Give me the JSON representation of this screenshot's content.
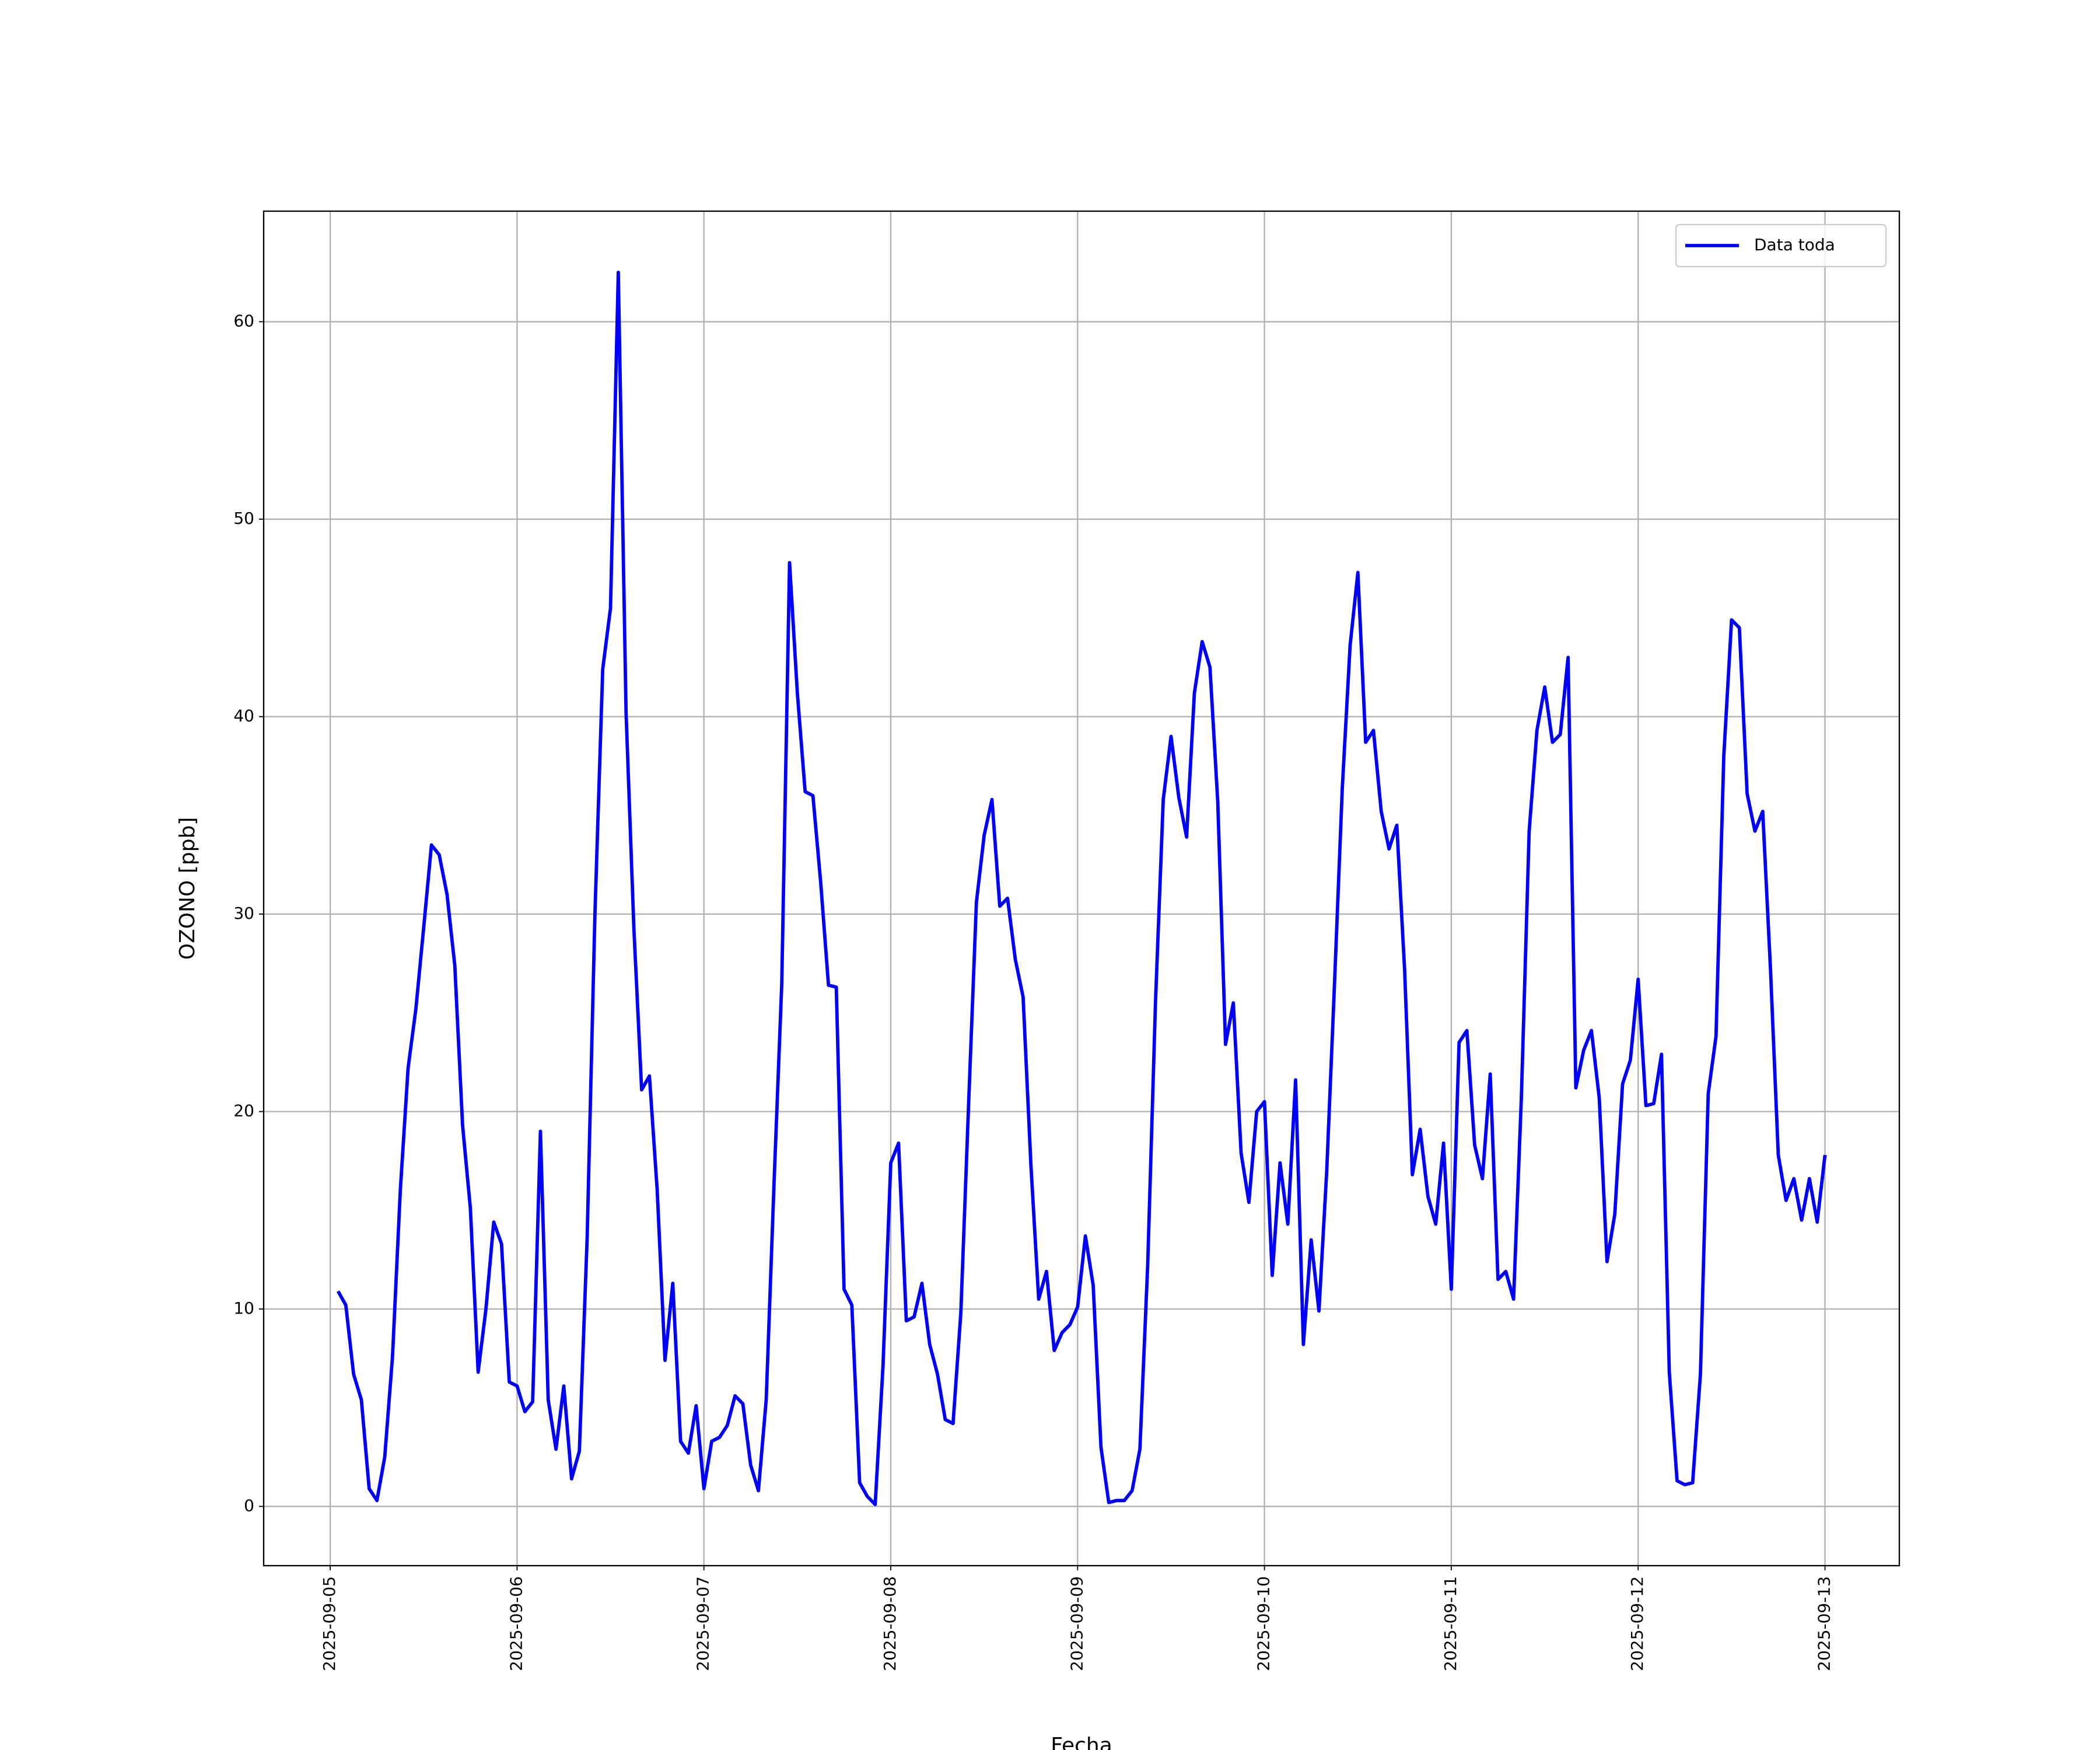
{
  "chart_data": {
    "type": "line",
    "x_label": "Fecha",
    "y_label": "OZONO [ppb]",
    "x": [
      "2025-09-05 01:00",
      "2025-09-05 02:00",
      "2025-09-05 03:00",
      "2025-09-05 04:00",
      "2025-09-05 05:00",
      "2025-09-05 06:00",
      "2025-09-05 07:00",
      "2025-09-05 08:00",
      "2025-09-05 09:00",
      "2025-09-05 10:00",
      "2025-09-05 11:00",
      "2025-09-05 12:00",
      "2025-09-05 13:00",
      "2025-09-05 14:00",
      "2025-09-05 15:00",
      "2025-09-05 16:00",
      "2025-09-05 17:00",
      "2025-09-05 18:00",
      "2025-09-05 19:00",
      "2025-09-05 20:00",
      "2025-09-05 21:00",
      "2025-09-05 22:00",
      "2025-09-05 23:00",
      "2025-09-06 00:00",
      "2025-09-06 01:00",
      "2025-09-06 02:00",
      "2025-09-06 03:00",
      "2025-09-06 04:00",
      "2025-09-06 05:00",
      "2025-09-06 06:00",
      "2025-09-06 07:00",
      "2025-09-06 08:00",
      "2025-09-06 09:00",
      "2025-09-06 10:00",
      "2025-09-06 11:00",
      "2025-09-06 12:00",
      "2025-09-06 13:00",
      "2025-09-06 14:00",
      "2025-09-06 15:00",
      "2025-09-06 16:00",
      "2025-09-06 17:00",
      "2025-09-06 18:00",
      "2025-09-06 19:00",
      "2025-09-06 20:00",
      "2025-09-06 21:00",
      "2025-09-06 22:00",
      "2025-09-06 23:00",
      "2025-09-07 00:00",
      "2025-09-07 01:00",
      "2025-09-07 02:00",
      "2025-09-07 03:00",
      "2025-09-07 04:00",
      "2025-09-07 05:00",
      "2025-09-07 06:00",
      "2025-09-07 07:00",
      "2025-09-07 08:00",
      "2025-09-07 09:00",
      "2025-09-07 10:00",
      "2025-09-07 11:00",
      "2025-09-07 12:00",
      "2025-09-07 13:00",
      "2025-09-07 14:00",
      "2025-09-07 15:00",
      "2025-09-07 16:00",
      "2025-09-07 17:00",
      "2025-09-07 18:00",
      "2025-09-07 19:00",
      "2025-09-07 20:00",
      "2025-09-07 21:00",
      "2025-09-07 22:00",
      "2025-09-07 23:00",
      "2025-09-08 00:00",
      "2025-09-08 01:00",
      "2025-09-08 02:00",
      "2025-09-08 03:00",
      "2025-09-08 04:00",
      "2025-09-08 05:00",
      "2025-09-08 06:00",
      "2025-09-08 07:00",
      "2025-09-08 08:00",
      "2025-09-08 09:00",
      "2025-09-08 10:00",
      "2025-09-08 11:00",
      "2025-09-08 12:00",
      "2025-09-08 13:00",
      "2025-09-08 14:00",
      "2025-09-08 15:00",
      "2025-09-08 16:00",
      "2025-09-08 17:00",
      "2025-09-08 18:00",
      "2025-09-08 19:00",
      "2025-09-08 20:00",
      "2025-09-08 21:00",
      "2025-09-08 22:00",
      "2025-09-08 23:00",
      "2025-09-09 00:00",
      "2025-09-09 01:00",
      "2025-09-09 02:00",
      "2025-09-09 03:00",
      "2025-09-09 04:00",
      "2025-09-09 05:00",
      "2025-09-09 06:00",
      "2025-09-09 07:00",
      "2025-09-09 08:00",
      "2025-09-09 09:00",
      "2025-09-09 10:00",
      "2025-09-09 11:00",
      "2025-09-09 12:00",
      "2025-09-09 13:00",
      "2025-09-09 14:00",
      "2025-09-09 15:00",
      "2025-09-09 16:00",
      "2025-09-09 17:00",
      "2025-09-09 18:00",
      "2025-09-09 19:00",
      "2025-09-09 20:00",
      "2025-09-09 21:00",
      "2025-09-09 22:00",
      "2025-09-09 23:00",
      "2025-09-10 00:00",
      "2025-09-10 01:00",
      "2025-09-10 02:00",
      "2025-09-10 03:00",
      "2025-09-10 04:00",
      "2025-09-10 05:00",
      "2025-09-10 06:00",
      "2025-09-10 07:00",
      "2025-09-10 08:00",
      "2025-09-10 09:00",
      "2025-09-10 10:00",
      "2025-09-10 11:00",
      "2025-09-10 12:00",
      "2025-09-10 13:00",
      "2025-09-10 14:00",
      "2025-09-10 15:00",
      "2025-09-10 16:00",
      "2025-09-10 17:00",
      "2025-09-10 18:00",
      "2025-09-10 19:00",
      "2025-09-10 20:00",
      "2025-09-10 21:00",
      "2025-09-10 22:00",
      "2025-09-10 23:00",
      "2025-09-11 00:00",
      "2025-09-11 01:00",
      "2025-09-11 02:00",
      "2025-09-11 03:00",
      "2025-09-11 04:00",
      "2025-09-11 05:00",
      "2025-09-11 06:00",
      "2025-09-11 07:00",
      "2025-09-11 08:00",
      "2025-09-11 09:00",
      "2025-09-11 10:00",
      "2025-09-11 11:00",
      "2025-09-11 12:00",
      "2025-09-11 13:00",
      "2025-09-11 14:00",
      "2025-09-11 15:00",
      "2025-09-11 16:00",
      "2025-09-11 17:00",
      "2025-09-11 18:00",
      "2025-09-11 19:00",
      "2025-09-11 20:00",
      "2025-09-11 21:00",
      "2025-09-11 22:00",
      "2025-09-11 23:00",
      "2025-09-12 00:00",
      "2025-09-12 01:00",
      "2025-09-12 02:00",
      "2025-09-12 03:00",
      "2025-09-12 04:00",
      "2025-09-12 05:00",
      "2025-09-12 06:00",
      "2025-09-12 07:00",
      "2025-09-12 08:00",
      "2025-09-12 09:00",
      "2025-09-12 10:00",
      "2025-09-12 11:00",
      "2025-09-12 12:00",
      "2025-09-12 13:00",
      "2025-09-12 14:00",
      "2025-09-12 15:00",
      "2025-09-12 16:00",
      "2025-09-12 17:00",
      "2025-09-12 18:00",
      "2025-09-12 19:00",
      "2025-09-12 20:00",
      "2025-09-12 21:00",
      "2025-09-12 22:00",
      "2025-09-12 23:00",
      "2025-09-13 00:00"
    ],
    "series": [
      {
        "name": "Data toda",
        "color": "#0000ff",
        "values": [
          10.9,
          10.2,
          6.7,
          5.4,
          0.9,
          0.3,
          2.5,
          7.6,
          16,
          22.2,
          25.2,
          29.3,
          33.5,
          33.0,
          31.0,
          27.4,
          19.3,
          15.1,
          6.8,
          10.0,
          14.4,
          13.3,
          6.3,
          6.1,
          4.8,
          5.3,
          19.0,
          5.4,
          2.9,
          6.1,
          1.4,
          2.8,
          13.6,
          30,
          42.4,
          45.5,
          62.5,
          40.2,
          29.3,
          21.1,
          21.8,
          16,
          7.4,
          11.3,
          3.3,
          2.7,
          5.1,
          0.9,
          3.3,
          3.5,
          4.1,
          5.6,
          5.2,
          2.1,
          0.8,
          5.4,
          16.3,
          26.5,
          47.8,
          41.2,
          36.2,
          36.0,
          31.6,
          26.4,
          26.3,
          11.0,
          10.2,
          1.2,
          0.5,
          0.1,
          7.1,
          17.4,
          18.4,
          9.4,
          9.6,
          11.3,
          8.2,
          6.7,
          4.4,
          4.2,
          9.8,
          20.4,
          30.6,
          34.0,
          35.8,
          30.4,
          30.8,
          27.7,
          25.8,
          17.3,
          10.5,
          11.9,
          7.9,
          8.8,
          9.2,
          10.1,
          13.7,
          11.2,
          3.0,
          0.2,
          0.3,
          0.3,
          0.8,
          2.9,
          12.2,
          25.5,
          35.8,
          39.0,
          35.9,
          33.9,
          41.2,
          43.8,
          42.5,
          35.7,
          23.4,
          25.5,
          17.9,
          15.4,
          20.0,
          20.5,
          11.7,
          17.4,
          14.3,
          21.6,
          8.2,
          13.5,
          9.9,
          17.0,
          26.5,
          36.4,
          43.6,
          47.3,
          38.7,
          39.3,
          35.2,
          33.3,
          34.5,
          27.2,
          16.8,
          19.1,
          15.7,
          14.3,
          18.4,
          11.0,
          23.5,
          24.1,
          18.3,
          16.6,
          21.9,
          11.5,
          11.9,
          10.5,
          20.7,
          34.2,
          39.3,
          41.5,
          38.7,
          39.1,
          43.0,
          21.2,
          23.1,
          24.1,
          20.7,
          12.4,
          14.8,
          21.4,
          22.6,
          26.7,
          20.3,
          20.4,
          22.9,
          6.8,
          1.3,
          1.1,
          1.2,
          6.7,
          20.9,
          23.8,
          38.0,
          44.9,
          44.5,
          36.1,
          34.2,
          35.2,
          27.2,
          17.8,
          15.5,
          16.6,
          14.5,
          16.6,
          14.4,
          17.8
        ]
      }
    ],
    "xlim": [
      "2025-09-04 15:27",
      "2025-09-13 09:33"
    ],
    "xticks": [
      "2025-09-05",
      "2025-09-06",
      "2025-09-07",
      "2025-09-08",
      "2025-09-09",
      "2025-09-10",
      "2025-09-11",
      "2025-09-12",
      "2025-09-13"
    ],
    "ylim": [
      -3,
      65.6
    ],
    "yticks": [
      0,
      10,
      20,
      30,
      40,
      50,
      60
    ],
    "grid": true,
    "legend": "upper right"
  }
}
